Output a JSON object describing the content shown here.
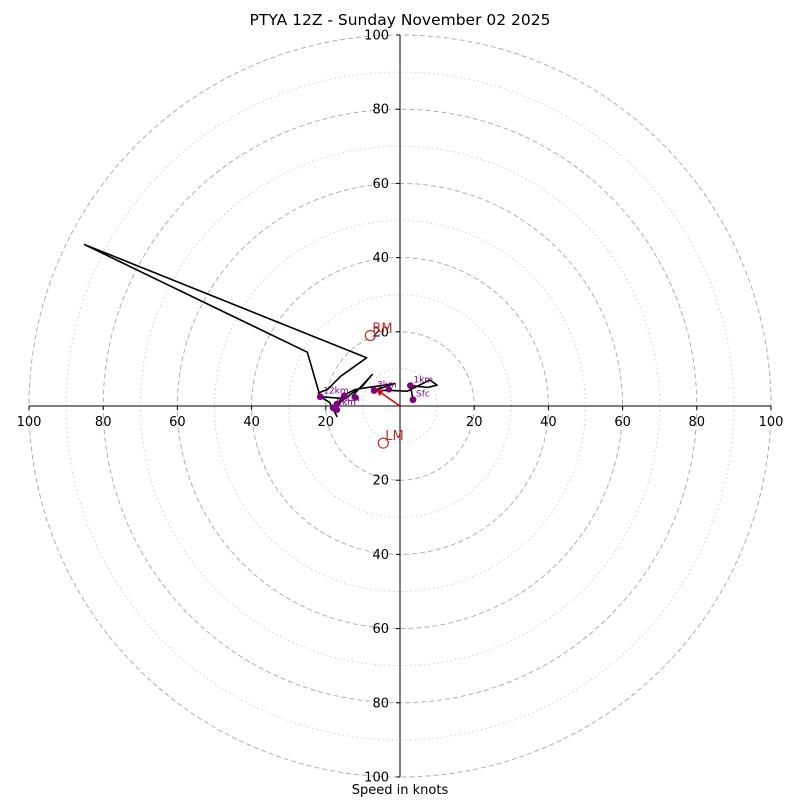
{
  "chart_data": {
    "type": "hodograph",
    "title": "PTYA 12Z - Sunday November 02 2025",
    "xlabel": "Speed in knots",
    "units": "knots",
    "range": [
      -100,
      100
    ],
    "ring_ticks": [
      20,
      40,
      60,
      80,
      100
    ],
    "axis_tick_labels": [
      "100",
      "80",
      "60",
      "40",
      "20",
      "20",
      "40",
      "60",
      "80",
      "100"
    ],
    "grid": true,
    "colors": {
      "profile": "#000000",
      "height_markers": "#800080",
      "storm_motion": "#c03030",
      "mean_wind_vector": "#e00000",
      "rings_major": "#b0b0b0",
      "rings_minor": "#cfcfcf"
    },
    "profile": [
      [
        3.5,
        1.7
      ],
      [
        2.8,
        5.5
      ],
      [
        7.5,
        5.0
      ],
      [
        10.0,
        5.6
      ],
      [
        8.0,
        7.0
      ],
      [
        2.0,
        4.0
      ],
      [
        -2.5,
        4.2
      ],
      [
        -7.0,
        4.2
      ],
      [
        -1.5,
        6.0
      ],
      [
        -12.0,
        4.5
      ],
      [
        -15.0,
        3.0
      ],
      [
        -17.0,
        0.5
      ],
      [
        -14.5,
        2.2
      ],
      [
        -18.0,
        -0.5
      ],
      [
        -17.0,
        -2.8
      ],
      [
        -19.0,
        1.0
      ],
      [
        -21.5,
        2.5
      ],
      [
        -22.0,
        3.5
      ],
      [
        -19.5,
        4.5
      ],
      [
        -16.0,
        8.0
      ],
      [
        -9.0,
        13.0
      ],
      [
        -85.0,
        43.5
      ],
      [
        -25.0,
        14.5
      ],
      [
        -21.5,
        2.5
      ],
      [
        -15.0,
        2.0
      ],
      [
        -10.0,
        5.5
      ],
      [
        -7.5,
        8.5
      ],
      [
        -13.0,
        2.5
      ]
    ],
    "height_markers": [
      {
        "label": "Sfc",
        "u": 3.5,
        "v": 1.7
      },
      {
        "label": "1km",
        "u": 2.8,
        "v": 5.5
      },
      {
        "label": "3km",
        "u": -7.0,
        "v": 4.2
      },
      {
        "label": "6km",
        "u": -17.0,
        "v": 0.5
      },
      {
        "label": "9km",
        "u": -18.0,
        "v": -0.5
      },
      {
        "label": "12km",
        "u": -21.5,
        "v": 2.5
      }
    ],
    "extra_markers": [
      {
        "u": -3.0,
        "v": 4.5
      },
      {
        "u": -12.0,
        "v": 2.3
      },
      {
        "u": -15.0,
        "v": 2.8
      },
      {
        "u": -17.0,
        "v": -1.0
      }
    ],
    "storm_motion": [
      {
        "label": "RM",
        "u": -8.0,
        "v": 19.0
      },
      {
        "label": "LM",
        "u": -4.5,
        "v": -10.0
      }
    ],
    "mean_wind_vector": {
      "u": -6.5,
      "v": 4.5
    }
  }
}
